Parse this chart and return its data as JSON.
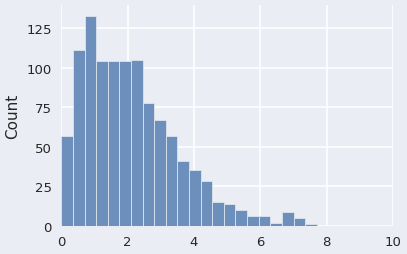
{
  "bar_heights": [
    57,
    111,
    133,
    104,
    104,
    104,
    105,
    78,
    67,
    57,
    41,
    35,
    28,
    15,
    14,
    10,
    6,
    6,
    2,
    9,
    5,
    1
  ],
  "bin_start": 0.0,
  "bin_width": 0.35,
  "bar_color": "#6d8fbc",
  "bar_edgecolor": "#e8ecf2",
  "ylabel": "Count",
  "xlim": [
    0,
    10
  ],
  "ylim": [
    0,
    140
  ],
  "xticks": [
    0,
    2,
    4,
    6,
    8,
    10
  ],
  "yticks": [
    0,
    25,
    50,
    75,
    100,
    125
  ],
  "axes_facecolor": "#eaedf4",
  "figure_facecolor": "#eaedf4",
  "grid_color": "#ffffff",
  "grid_linewidth": 1.2,
  "tick_labelsize": 9.5,
  "label_fontsize": 11
}
